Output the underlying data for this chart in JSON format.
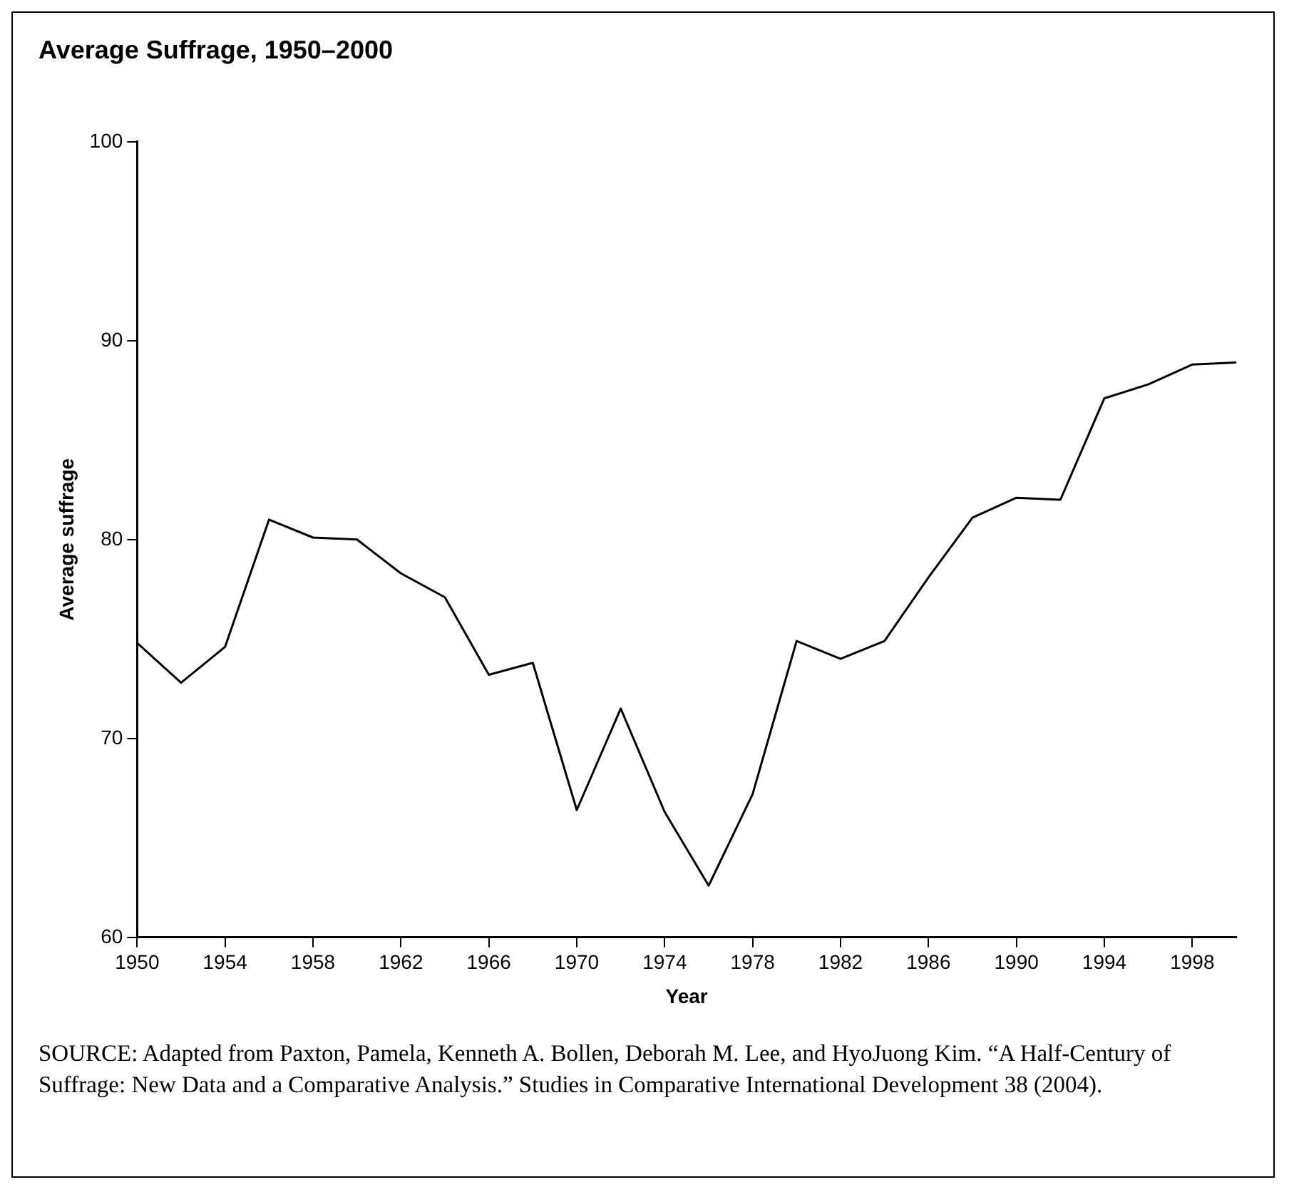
{
  "chart_data": {
    "type": "line",
    "title": "Average Suffrage, 1950–2000",
    "xlabel": "Year",
    "ylabel": "Average suffrage",
    "x": [
      1950,
      1952,
      1954,
      1956,
      1958,
      1960,
      1962,
      1964,
      1966,
      1968,
      1970,
      1972,
      1974,
      1976,
      1978,
      1980,
      1982,
      1984,
      1986,
      1988,
      1990,
      1992,
      1994,
      1996,
      1998,
      2000
    ],
    "series": [
      {
        "color": "#000000",
        "values": [
          74.8,
          72.8,
          74.6,
          81.0,
          80.1,
          80.0,
          78.3,
          77.1,
          73.2,
          73.8,
          66.4,
          71.5,
          66.3,
          62.6,
          67.2,
          74.9,
          74.0,
          74.9,
          78.1,
          81.1,
          82.1,
          82.0,
          87.1,
          87.8,
          88.8,
          88.9
        ]
      }
    ],
    "xlim": [
      1950,
      2000
    ],
    "xticks": [
      1950,
      1954,
      1958,
      1962,
      1966,
      1970,
      1974,
      1978,
      1982,
      1986,
      1990,
      1994,
      1998
    ],
    "ylim": [
      60,
      100
    ],
    "yticks": [
      60,
      70,
      80,
      90,
      100
    ],
    "grid": false,
    "legend": false,
    "marker": "none",
    "line_style": "solid",
    "annotations": [
      "SOURCE: Adapted from Paxton, Pamela, Kenneth A. Bollen, Deborah M. Lee, and HyoJuong Kim. “A Half-Century of Suffrage: New Data and a Comparative Analysis.” Studies in Comparative International Development 38 (2004)."
    ]
  }
}
